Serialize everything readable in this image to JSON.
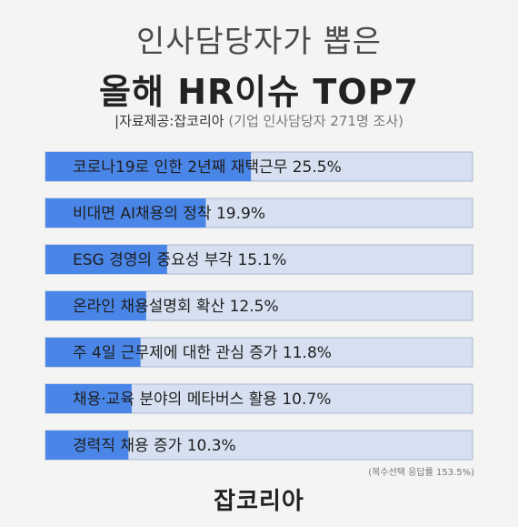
{
  "header": {
    "title_line1": "인사담당자가 뽑은",
    "title_line2": "올해 HR이슈 TOP7",
    "source": "|자료제공:잡코리아",
    "source_note": "(기업 인사담당자 271명 조사)"
  },
  "footnote": "(복수선택 응답률 153.5%)",
  "brand": "잡코리아",
  "colors": {
    "bar_fill": "#4a86e8",
    "bar_track": "#d6e0f0",
    "bar_border": "#a9b8d6"
  },
  "chart_data": {
    "type": "bar",
    "orientation": "horizontal",
    "categories": [
      "코로나19로 인한 2년째 재택근무",
      "비대면 AI채용의 정착",
      "ESG 경영의 중요성 부각",
      "온라인 채용설명회 확산",
      "주 4일 근무제에 대한 관심 증가",
      "채용·교육 분야의 메타버스 활용",
      "경력직 채용 증가"
    ],
    "values": [
      25.5,
      19.9,
      15.1,
      12.5,
      11.8,
      10.7,
      10.3
    ],
    "labels": [
      "코로나19로 인한 2년째 재택근무 25.5%",
      "비대면 AI채용의 정착 19.9%",
      "ESG 경영의 중요성 부각 15.1%",
      "온라인 채용설명회 확산 12.5%",
      "주 4일 근무제에 대한 관심 증가 11.8%",
      "채용·교육 분야의 메타버스 활용 10.7%",
      "경력직 채용 증가 10.3%"
    ],
    "unit": "%",
    "xlim": [
      0,
      53
    ],
    "grid": false,
    "legend": "none"
  }
}
